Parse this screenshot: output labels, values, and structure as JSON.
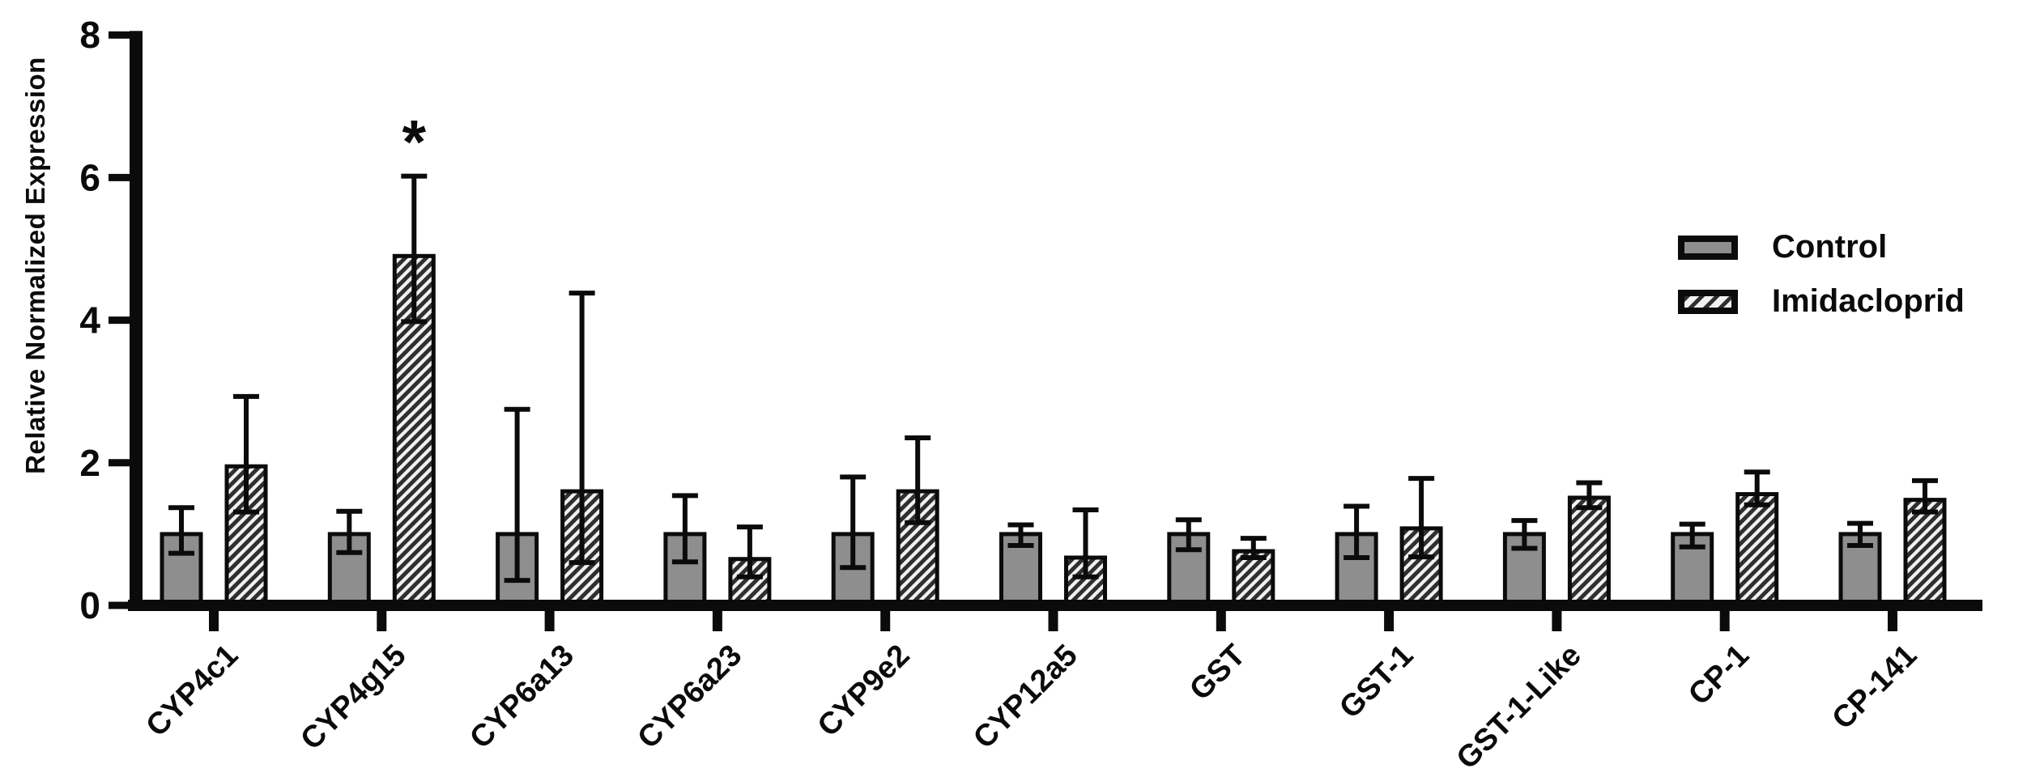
{
  "figure": {
    "background": "#ffffff"
  },
  "legend": {
    "items": [
      {
        "label": "Control",
        "swatch": "solid"
      },
      {
        "label": "Imidacloprid",
        "swatch": "hatched"
      }
    ]
  },
  "colors": {
    "bar_control_fill": "#8e8e8e",
    "bar_outline": "#0b0b0b",
    "hatch_background": "#f1f1f1",
    "hatch_stripe": "#2f2f2f",
    "axis": "#0b0b0b",
    "text": "#0b0b0b"
  },
  "chart_data": {
    "type": "bar",
    "title": "",
    "xlabel": "",
    "ylabel": "Relative Normalized Expression",
    "ylim": [
      0,
      8
    ],
    "yticks": [
      0,
      2,
      4,
      6,
      8
    ],
    "grid": false,
    "legend_position": "top-right",
    "categories": [
      "CYP4c1",
      "CYP4g15",
      "CYP6a13",
      "CYP6a23",
      "CYP9e2",
      "CYP12a5",
      "GST",
      "GST-1",
      "GST-1-Like",
      "CP-1",
      "CP-141"
    ],
    "series": [
      {
        "name": "Control",
        "style": "solid",
        "values": [
          1.0,
          1.0,
          1.0,
          1.0,
          1.0,
          1.0,
          1.0,
          1.0,
          1.0,
          1.0,
          1.0
        ],
        "error_low": [
          0.73,
          0.74,
          0.35,
          0.61,
          0.53,
          0.84,
          0.78,
          0.67,
          0.8,
          0.82,
          0.84
        ],
        "error_high": [
          1.37,
          1.32,
          2.75,
          1.54,
          1.8,
          1.13,
          1.2,
          1.39,
          1.19,
          1.14,
          1.15
        ]
      },
      {
        "name": "Imidacloprid",
        "style": "hatched",
        "values": [
          1.95,
          4.9,
          1.6,
          0.65,
          1.6,
          0.67,
          0.76,
          1.08,
          1.51,
          1.56,
          1.48
        ],
        "error_low": [
          1.31,
          3.98,
          0.6,
          0.4,
          1.16,
          0.4,
          0.67,
          0.68,
          1.37,
          1.41,
          1.31
        ],
        "error_high": [
          2.93,
          6.02,
          4.38,
          1.1,
          2.35,
          1.34,
          0.94,
          1.78,
          1.72,
          1.87,
          1.75
        ]
      }
    ],
    "annotations": [
      {
        "category": "CYP4g15",
        "series": "Imidacloprid",
        "symbol": "*",
        "meaning": "statistically significant"
      }
    ]
  }
}
